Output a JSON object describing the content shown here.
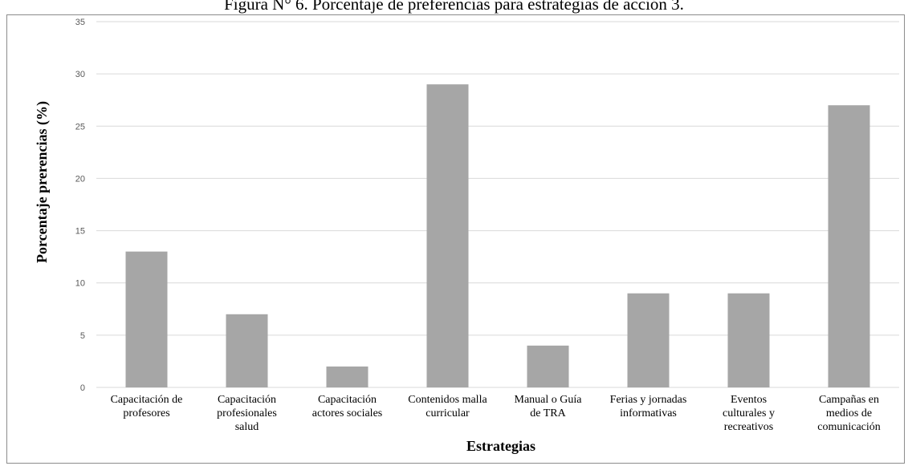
{
  "figure_title": "Figura N° 6. Porcentaje de preferencias para estrategias de acción 3.",
  "chart_data": {
    "type": "bar",
    "title": "",
    "xlabel": "Estrategias",
    "ylabel": "Porcentaje prerencias (%)",
    "ylim": [
      0,
      35
    ],
    "yticks": [
      0,
      5,
      10,
      15,
      20,
      25,
      30,
      35
    ],
    "grid": true,
    "legend": "none",
    "bar_color": "#a6a6a6",
    "grid_color": "#d9d9d9",
    "categories": [
      [
        "Capacitación de",
        "profesores"
      ],
      [
        "Capacitación",
        "profesionales",
        "salud"
      ],
      [
        "Capacitación",
        "actores sociales"
      ],
      [
        "Contenidos malla",
        "curricular"
      ],
      [
        "Manual o Guía",
        "de TRA"
      ],
      [
        "Ferias y jornadas",
        "informativas"
      ],
      [
        "Eventos",
        "culturales y",
        "recreativos"
      ],
      [
        "Campañas en",
        "medios de",
        "comunicación"
      ]
    ],
    "values": [
      13,
      7,
      2,
      29,
      4,
      9,
      9,
      27
    ]
  }
}
